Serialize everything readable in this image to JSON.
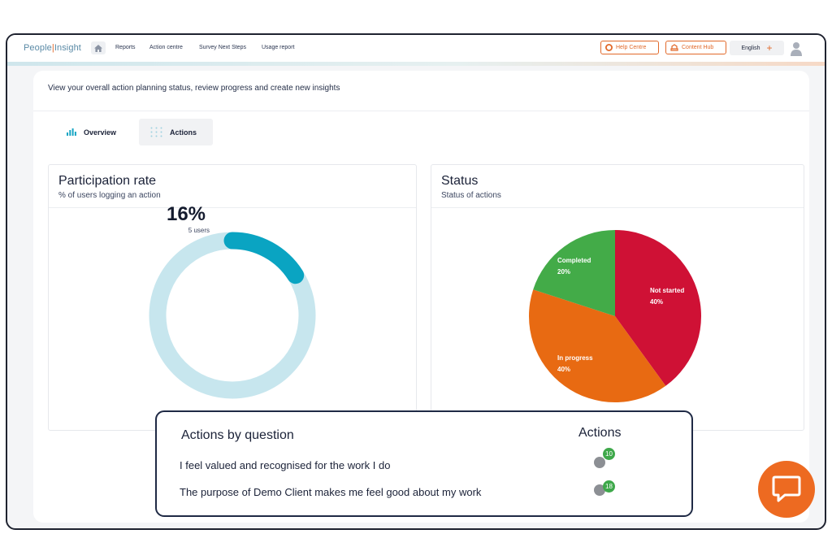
{
  "app": {
    "logo_part1": "People",
    "logo_part2": "Insight"
  },
  "nav": {
    "home_icon": "home-icon",
    "items": [
      "Reports",
      "Action centre",
      "Survey Next Steps",
      "Usage report"
    ]
  },
  "header_buttons": {
    "help_centre": "Help Centre",
    "content_hub": "Content Hub",
    "language": "English",
    "language_add": "+"
  },
  "page": {
    "description": "View your overall action planning status, review progress and create new insights"
  },
  "tabs": [
    {
      "label": "Overview",
      "icon": "bar-chart-icon",
      "active": false
    },
    {
      "label": "Actions",
      "icon": "dots-grid-icon",
      "active": true
    }
  ],
  "participation": {
    "title": "Participation rate",
    "subtitle": "% of users  logging an action",
    "percent_label": "16%",
    "users_label": "5 users"
  },
  "status": {
    "title": "Status",
    "subtitle": "Status of actions"
  },
  "chart_data": [
    {
      "type": "pie",
      "title": "Participation rate",
      "subtitle": "% of users  logging an action",
      "slices": [
        {
          "label": "",
          "value": 16,
          "color": "#0aa4c2"
        },
        {
          "label": "",
          "value": 84,
          "color": "#c7e6ee"
        }
      ],
      "center_text": "16%",
      "center_subtext": "5 users"
    },
    {
      "type": "pie",
      "title": "Status",
      "subtitle": "Status of actions",
      "slices": [
        {
          "label": "Not started",
          "value": 40,
          "display": "40%",
          "color": "#cf1135"
        },
        {
          "label": "In progress",
          "value": 40,
          "display": "40%",
          "color": "#e86a12"
        },
        {
          "label": "Completed",
          "value": 20,
          "display": "20%",
          "color": "#43ab48"
        }
      ]
    }
  ],
  "actions_by_question": {
    "title": "Actions by question",
    "column": "Actions",
    "rows": [
      {
        "question": "I feel valued and recognised for the work I do",
        "count": "10"
      },
      {
        "question": "The purpose of Demo Client makes me feel good about my work",
        "count": "18"
      }
    ]
  },
  "chat": {
    "icon": "chat-bubble-icon"
  }
}
